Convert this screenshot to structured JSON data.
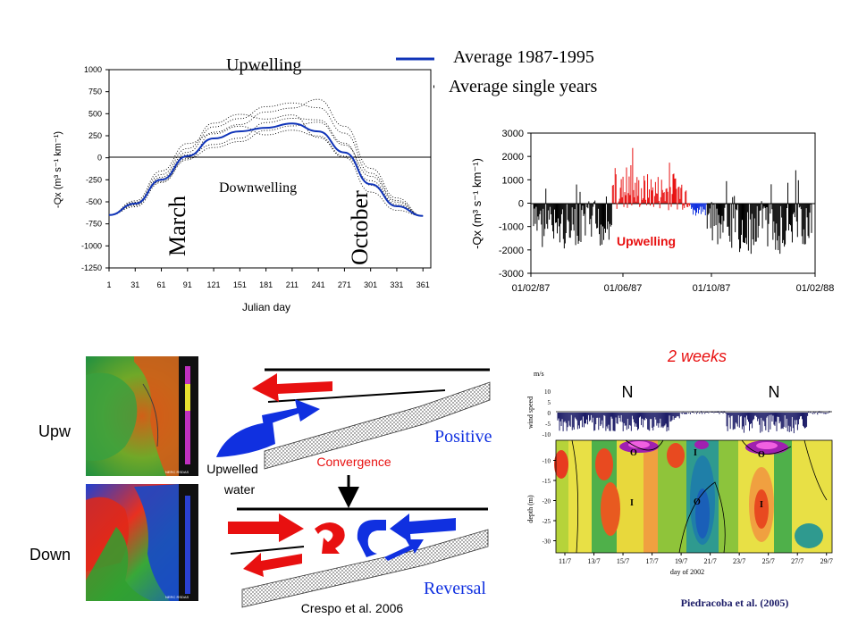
{
  "legend": {
    "average_label": "Average 1987-1995",
    "single_label": "Average single years",
    "colors": {
      "average": "#1034b8",
      "single": "#000000"
    }
  },
  "chart1": {
    "upwelling_label": "Upwelling",
    "downwelling_label": "Downwelling",
    "march_label": "March",
    "october_label": "October",
    "ylabel": "-Qx (m³ s⁻¹ km⁻¹)",
    "xlabel": "Julian day"
  },
  "chart2": {
    "ylabel": "-Qx (m³ s⁻¹ km⁻¹)",
    "upwelling_label": "Upwelling",
    "colors": {
      "upwelling": "#e81010",
      "downwelling": "#000000",
      "transition": "#1030e0"
    }
  },
  "images": {
    "upw_label": "Upw",
    "down_label": "Down",
    "watermark": "NERC RSDAS"
  },
  "schematic": {
    "positive_label": "Positive",
    "reversal_label": "Reversal",
    "convergence_label": "Convergence",
    "upwelled_line1": "Upwelled",
    "upwelled_line2": "water",
    "citation": "Crespo et al. 2006"
  },
  "chart3": {
    "two_weeks_label": "2 weeks",
    "n_label_1": "N",
    "n_label_2": "N",
    "unit_label": "m/s",
    "wind_ylabel": "wind speed",
    "depth_ylabel": "depth (m)",
    "xlabel": "day of 2002",
    "citation": "Piedracoba et al. (2005)",
    "region_labels": [
      "O",
      "I",
      "O",
      "I",
      "O",
      "I"
    ]
  },
  "chart_data": [
    {
      "type": "line",
      "x": [
        1,
        31,
        61,
        91,
        121,
        151,
        181,
        211,
        241,
        271,
        301,
        331,
        361
      ],
      "xticks": [
        1,
        31,
        61,
        91,
        121,
        151,
        181,
        211,
        241,
        271,
        301,
        331,
        361
      ],
      "yticks": [
        1000,
        750,
        500,
        250,
        0,
        -250,
        -500,
        -750,
        -1000,
        -1250
      ],
      "xlim": [
        1,
        370
      ],
      "ylim": [
        -1250,
        1000
      ],
      "series": [
        {
          "name": "Average 1987-1995",
          "values": [
            -650,
            -520,
            -250,
            20,
            220,
            300,
            340,
            390,
            300,
            60,
            -300,
            -550,
            -660
          ]
        }
      ]
    },
    {
      "type": "bar",
      "yticks": [
        3000,
        2000,
        1000,
        0,
        -1000,
        -2000,
        -3000
      ],
      "xticks": [
        "01/02/87",
        "01/06/87",
        "01/10/87",
        "01/02/88"
      ],
      "xlim": [
        0,
        366
      ],
      "ylim": [
        -3000,
        3000
      ]
    },
    {
      "type": "heatmap",
      "wind_yticks": [
        10,
        5,
        0,
        -5,
        -10
      ],
      "depth_yticks": [
        -10,
        -15,
        -20,
        -25,
        -30
      ],
      "xticks": [
        "11/7",
        "13/7",
        "15/7",
        "17/7",
        "19/7",
        "21/7",
        "23/7",
        "25/7",
        "27/7",
        "29/7"
      ],
      "xlim": [
        11,
        30
      ],
      "wind_ylim": [
        -10,
        10
      ],
      "depth_ylim": [
        -33,
        -5
      ]
    }
  ]
}
